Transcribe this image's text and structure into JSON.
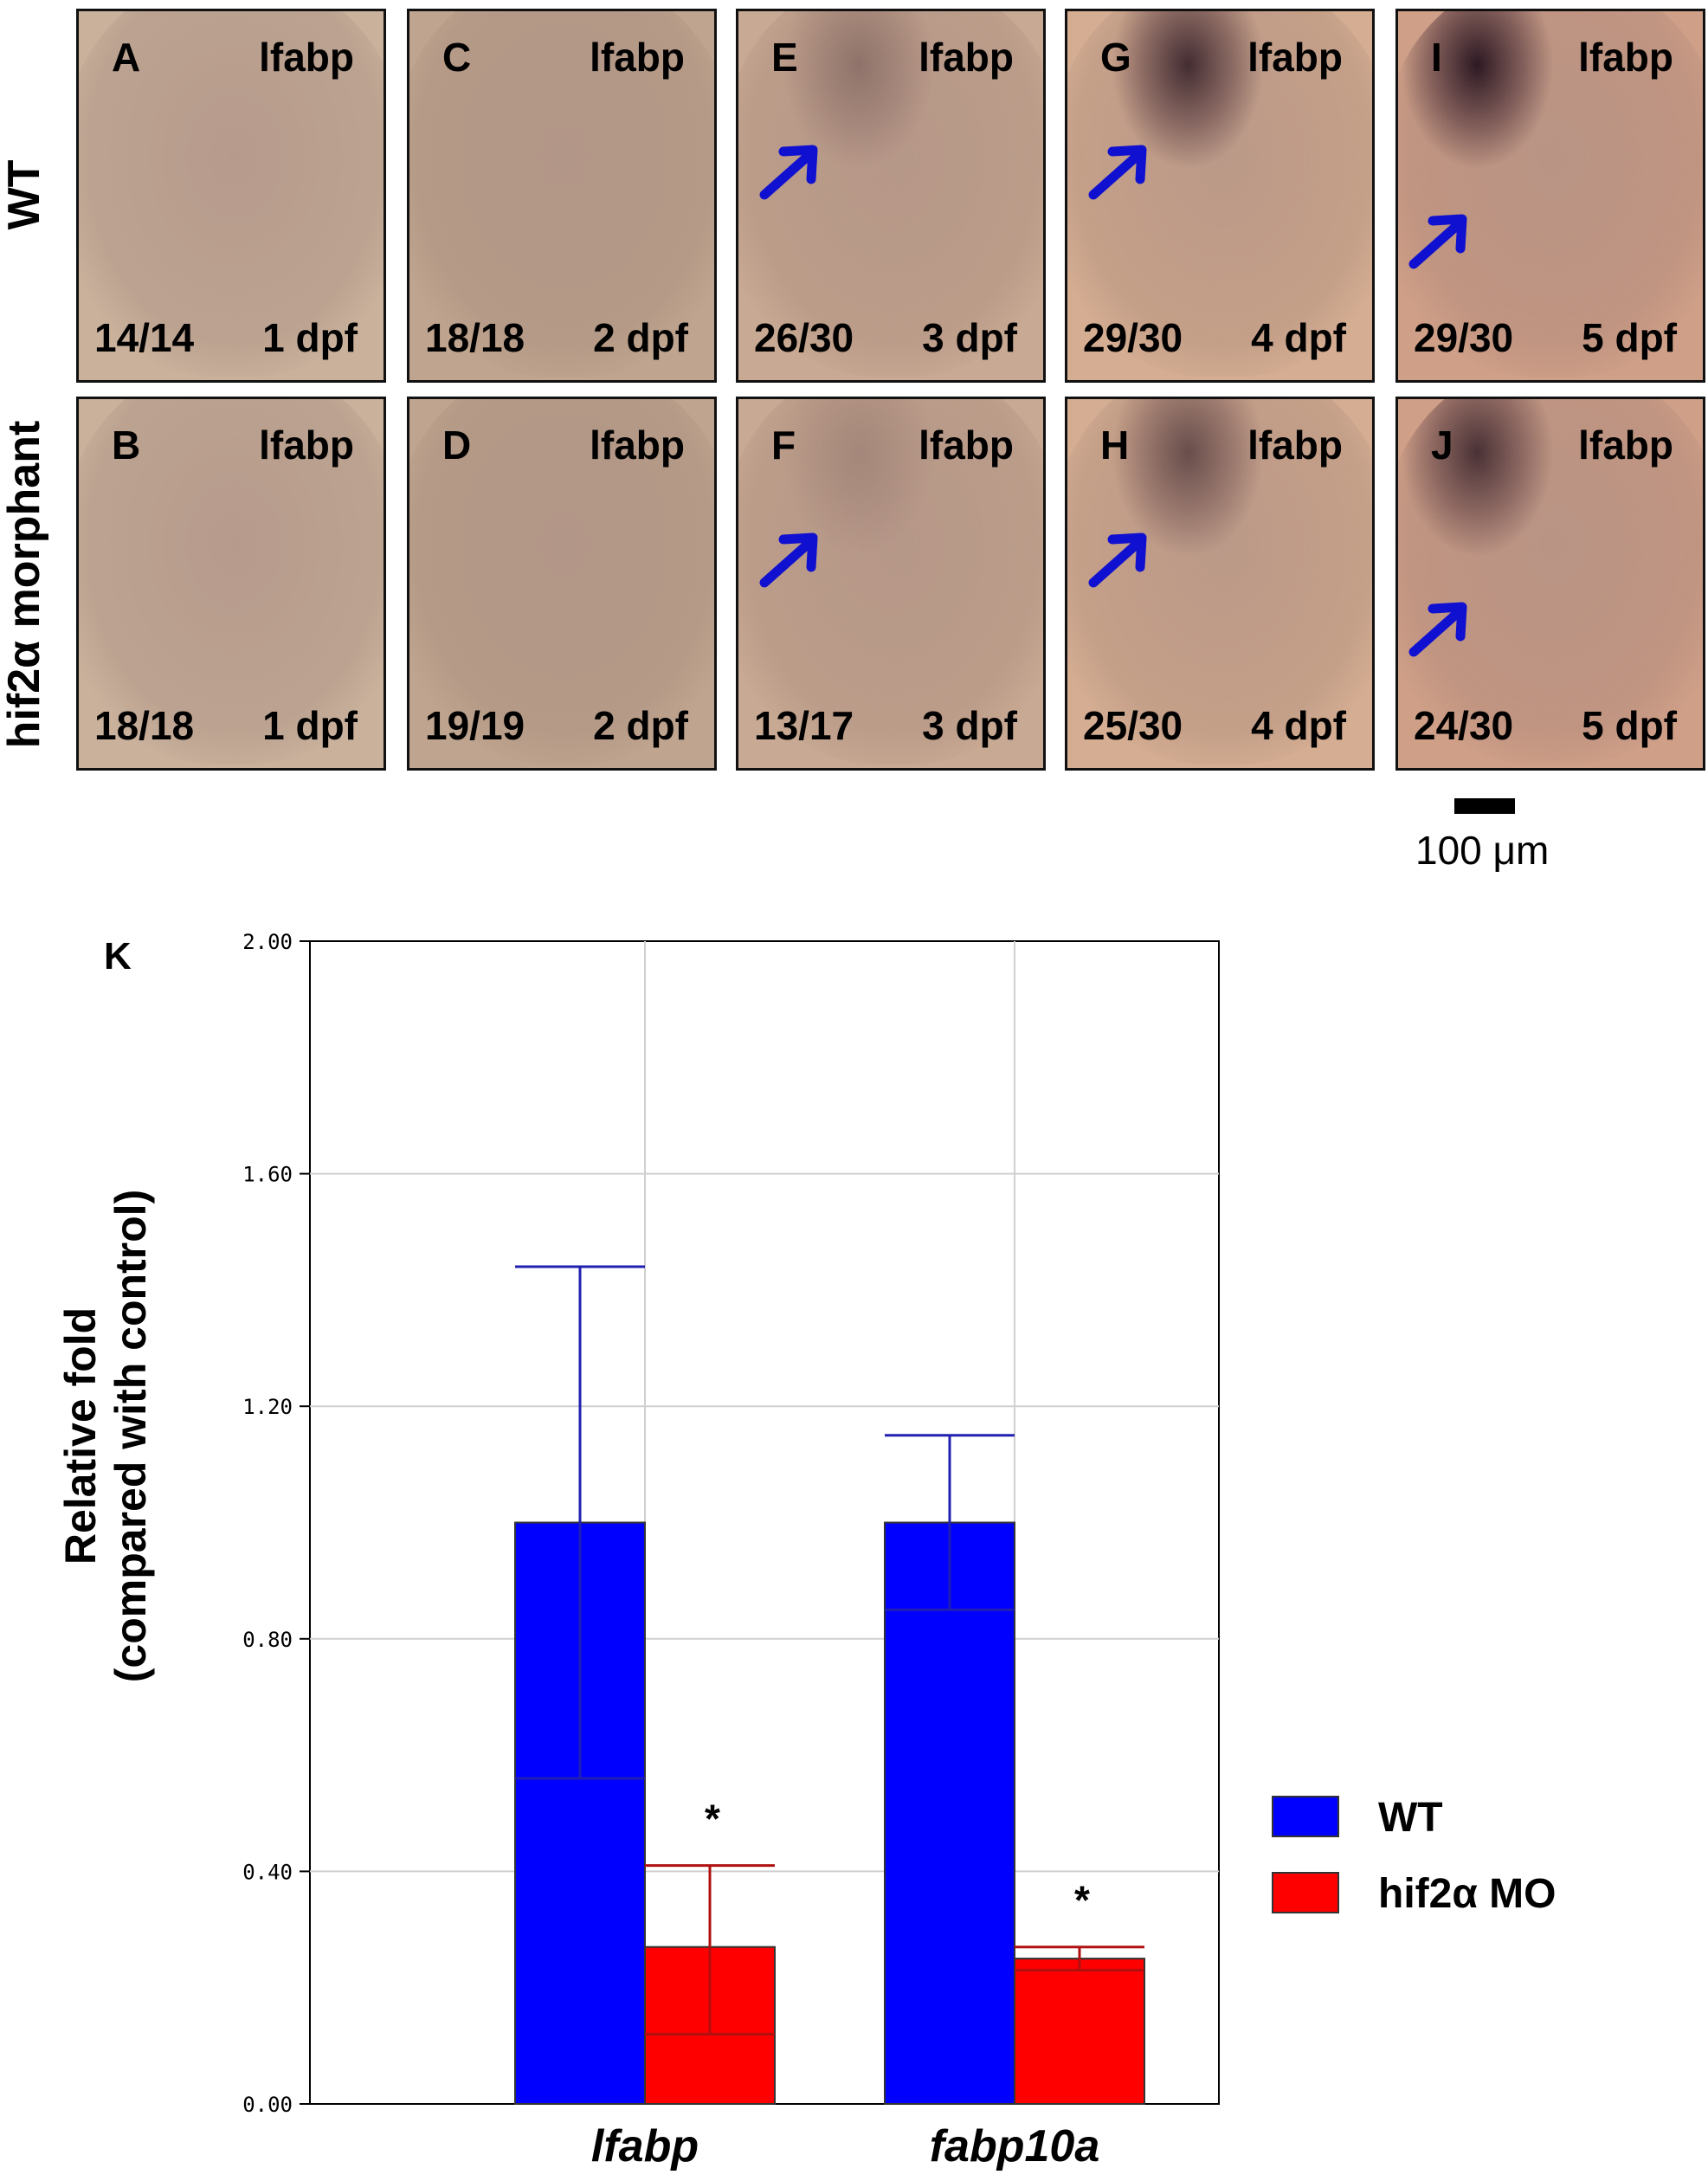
{
  "row_labels": [
    "WT",
    "hif2α morphant"
  ],
  "panels": [
    {
      "letter": "A",
      "gene": "lfabp",
      "count": "14/14",
      "stage": "1 dpf",
      "arrow": false,
      "stain": 0
    },
    {
      "letter": "C",
      "gene": "lfabp",
      "count": "18/18",
      "stage": "2 dpf",
      "arrow": false,
      "stain": 0
    },
    {
      "letter": "E",
      "gene": "lfabp",
      "count": "26/30",
      "stage": "3 dpf",
      "arrow": true,
      "stain": 0.3
    },
    {
      "letter": "G",
      "gene": "lfabp",
      "count": "29/30",
      "stage": "4 dpf",
      "arrow": true,
      "stain": 0.85
    },
    {
      "letter": "I",
      "gene": "lfabp",
      "count": "29/30",
      "stage": "5 dpf",
      "arrow": true,
      "stain": 1.0
    },
    {
      "letter": "B",
      "gene": "lfabp",
      "count": "18/18",
      "stage": "1 dpf",
      "arrow": false,
      "stain": 0
    },
    {
      "letter": "D",
      "gene": "lfabp",
      "count": "19/19",
      "stage": "2 dpf",
      "arrow": false,
      "stain": 0
    },
    {
      "letter": "F",
      "gene": "lfabp",
      "count": "13/17",
      "stage": "3 dpf",
      "arrow": true,
      "stain": 0.15
    },
    {
      "letter": "H",
      "gene": "lfabp",
      "count": "25/30",
      "stage": "4 dpf",
      "arrow": true,
      "stain": 0.6
    },
    {
      "letter": "J",
      "gene": "lfabp",
      "count": "24/30",
      "stage": "5 dpf",
      "arrow": true,
      "stain": 0.8
    }
  ],
  "scale_bar_label": "100 μm",
  "chart_panel_letter": "K",
  "chart_data": {
    "type": "bar",
    "categories": [
      "lfabp",
      "fabp10a"
    ],
    "series": [
      {
        "name": "WT",
        "color": "#0000ff",
        "values": [
          1.0,
          1.0
        ],
        "err_high": [
          1.44,
          1.15
        ],
        "err_low": [
          0.56,
          0.85
        ],
        "significant": [
          false,
          false
        ]
      },
      {
        "name": "hif2α MO",
        "color": "#ff0000",
        "values": [
          0.27,
          0.25
        ],
        "err_high": [
          0.41,
          0.27
        ],
        "err_low": [
          0.12,
          0.23
        ],
        "significant": [
          true,
          true
        ]
      }
    ],
    "ylabel_line1": "Relative fold",
    "ylabel_line2": "(compared with control)",
    "yticks": [
      "0.00",
      "0.40",
      "0.80",
      "1.20",
      "1.60",
      "2.00"
    ],
    "ylim": [
      0,
      2.0
    ],
    "significance_marker": "*",
    "grid": true,
    "legend_position": "right"
  }
}
